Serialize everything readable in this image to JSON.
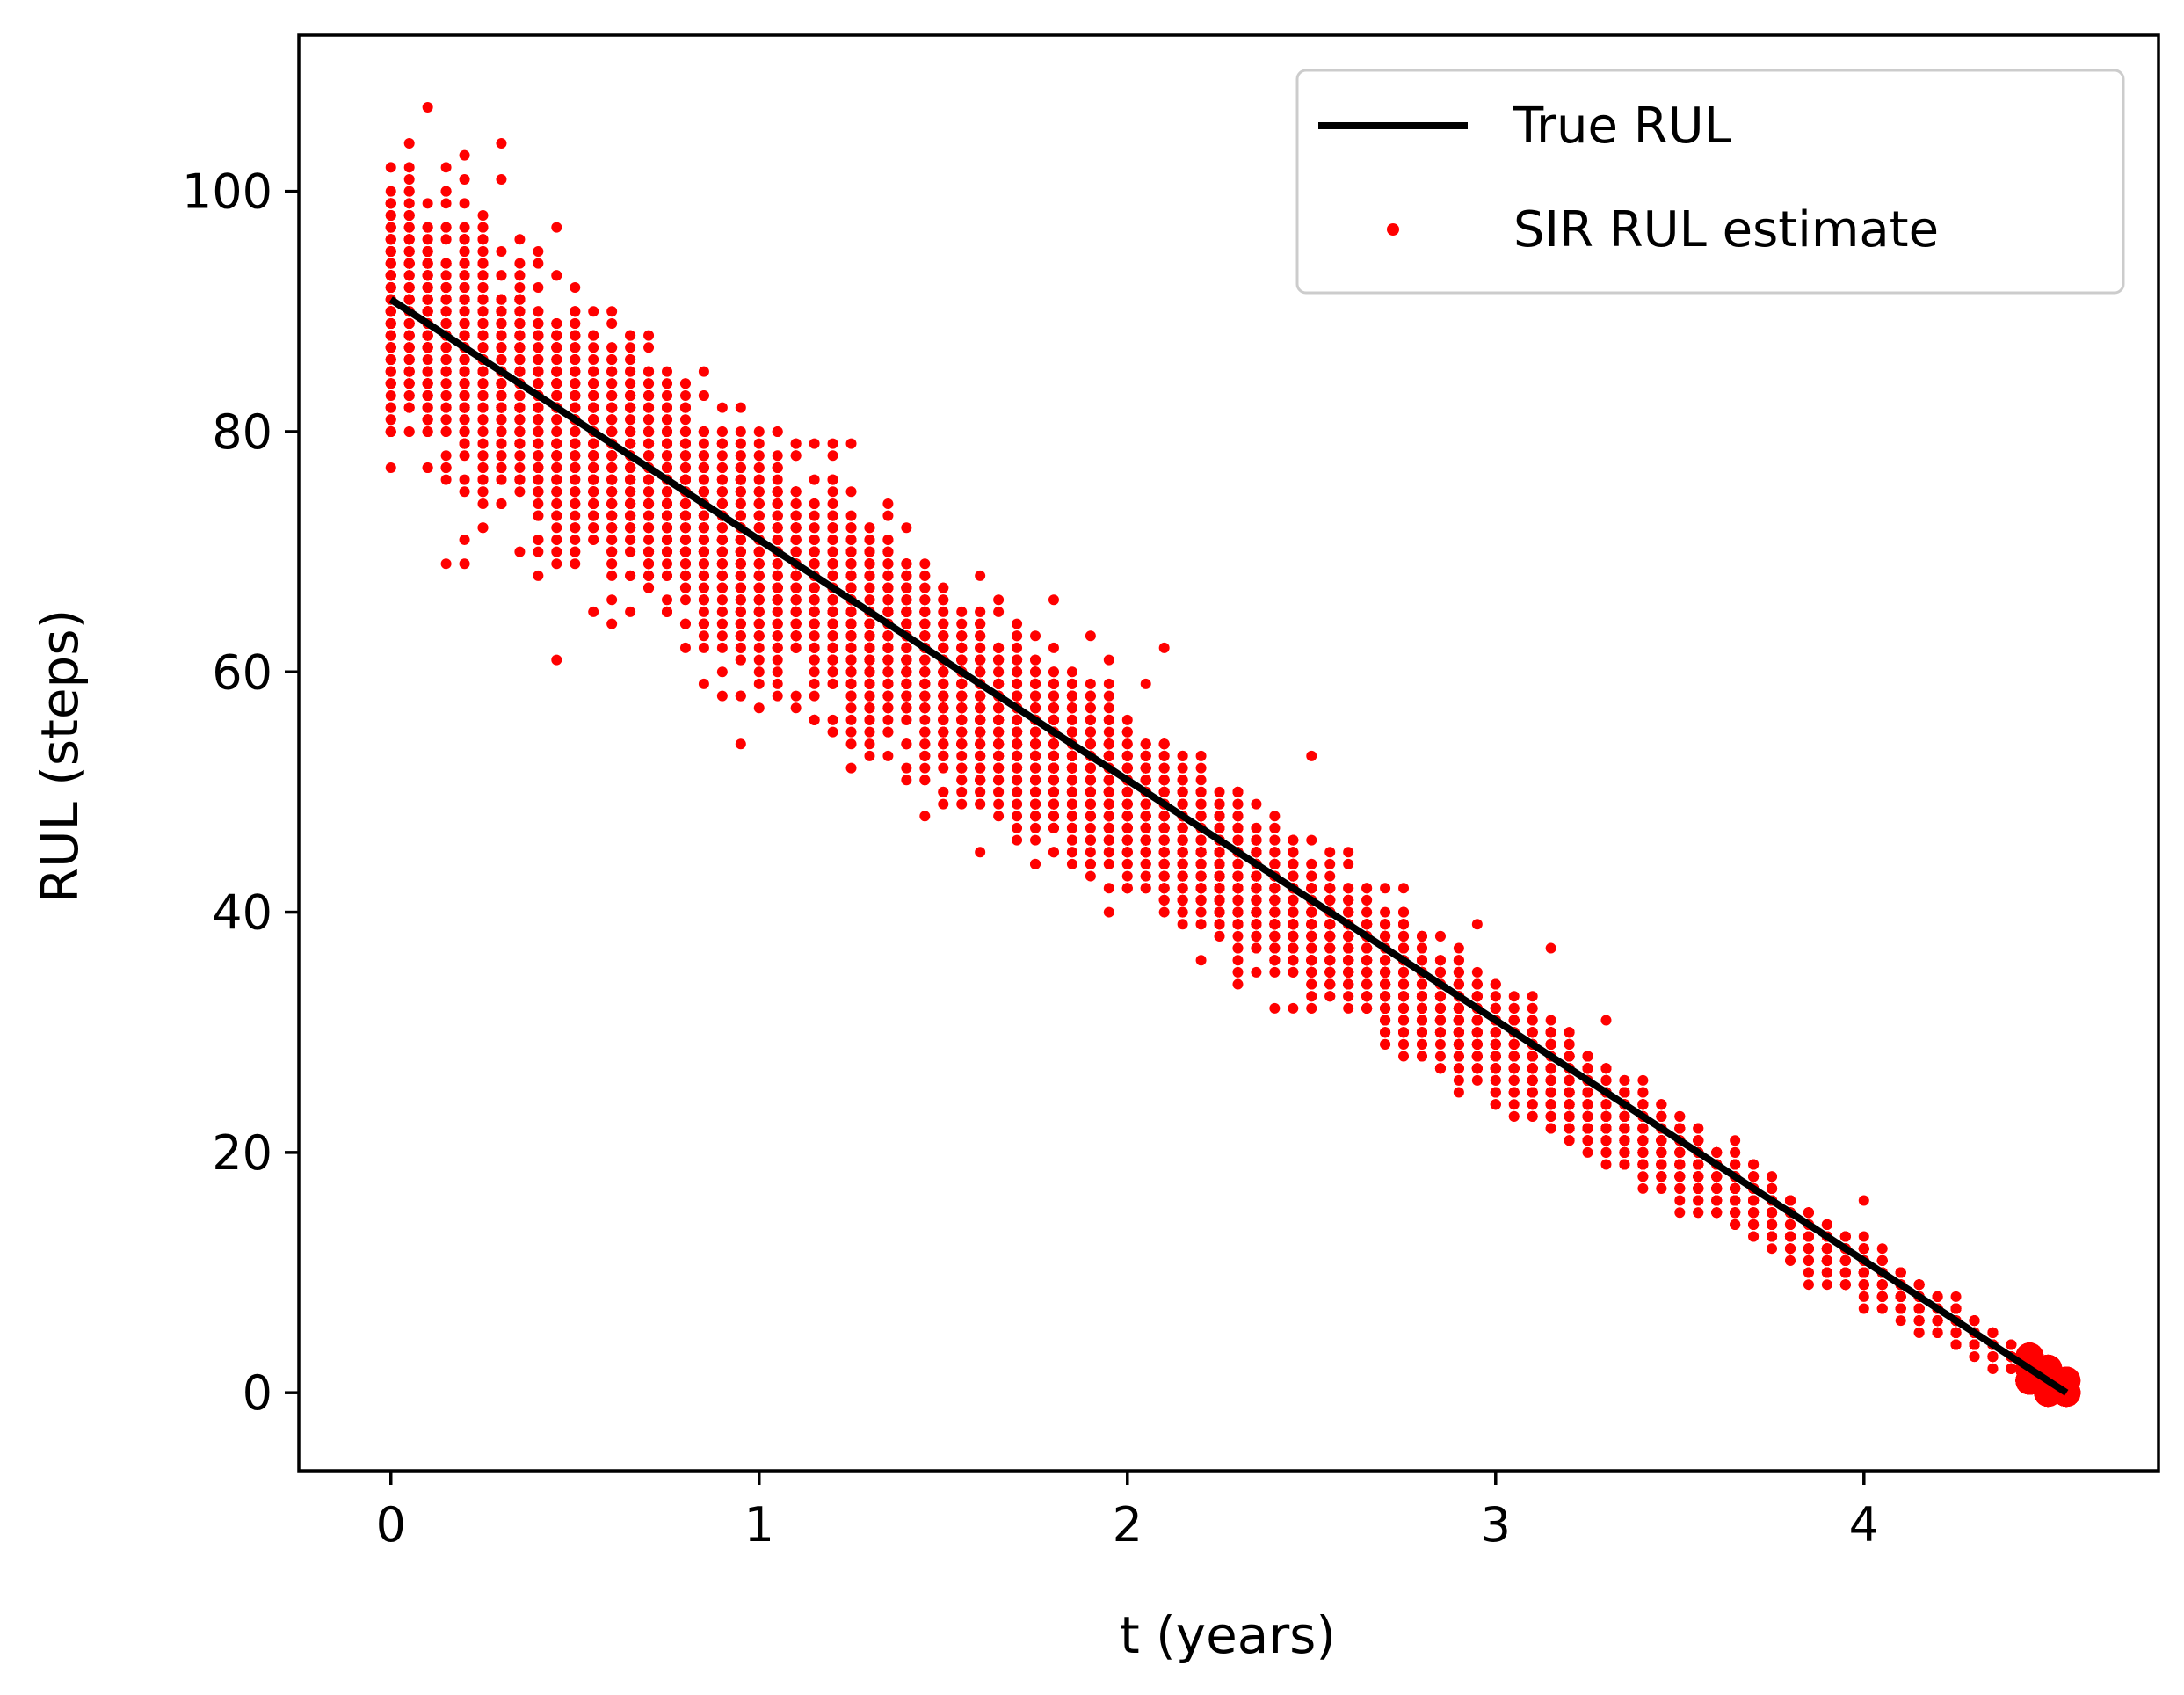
{
  "chart_data": {
    "type": "scatter",
    "title": "",
    "xlabel": "t (years)",
    "ylabel": "RUL (steps)",
    "xlim": [
      -0.25,
      4.8
    ],
    "ylim": [
      -6.5,
      113
    ],
    "xticks": [
      0,
      1,
      2,
      3,
      4
    ],
    "yticks": [
      0,
      20,
      40,
      60,
      80,
      100
    ],
    "xtick_labels": [
      "0",
      "1",
      "2",
      "3",
      "4"
    ],
    "ytick_labels": [
      "0",
      "20",
      "40",
      "60",
      "80",
      "100"
    ],
    "legend_position": "top-right",
    "series": [
      {
        "name": "True RUL",
        "kind": "line",
        "color": "#000000",
        "x": [
          0,
          4.55
        ],
        "y": [
          91,
          0
        ]
      },
      {
        "name": "SIR RUL estimate",
        "kind": "scatter",
        "color": "#ff0000",
        "description_points": {
          "t_start": 0,
          "t_end": 4.55,
          "time_step_years": 0.05,
          "start_spread_steps": 10,
          "end_spread_steps": 0.5,
          "outliers": [
            {
              "x": 0.1,
              "y": 107
            },
            {
              "x": 0.3,
              "y": 104
            },
            {
              "x": 0.2,
              "y": 103
            },
            {
              "x": 1.2,
              "y": 79
            },
            {
              "x": 1.25,
              "y": 79
            },
            {
              "x": 0.7,
              "y": 88
            },
            {
              "x": 1.8,
              "y": 66
            },
            {
              "x": 2.1,
              "y": 62
            },
            {
              "x": 2.5,
              "y": 53
            },
            {
              "x": 3.15,
              "y": 37
            },
            {
              "x": 3.3,
              "y": 31
            },
            {
              "x": 4.0,
              "y": 16
            }
          ]
        }
      }
    ]
  }
}
